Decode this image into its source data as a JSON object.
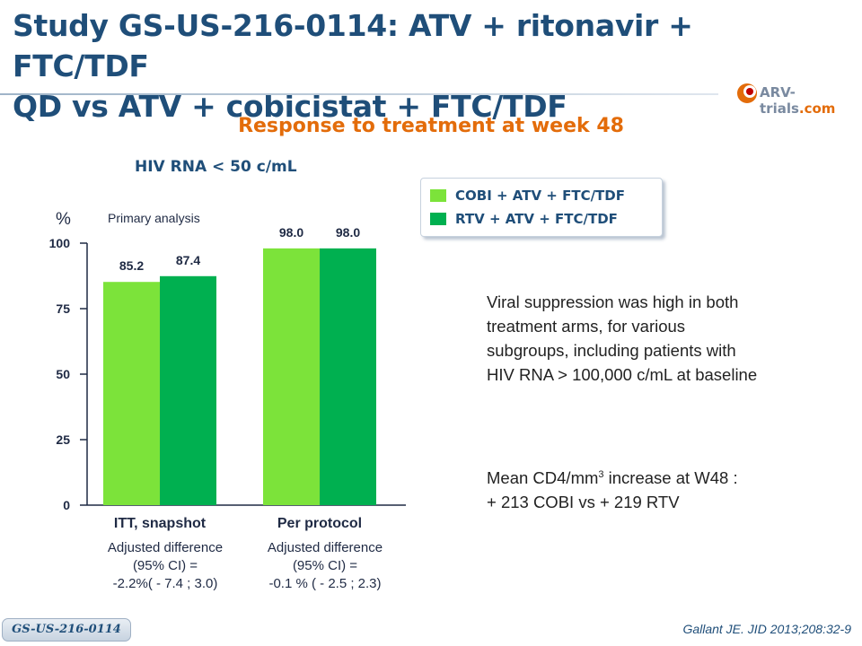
{
  "slide": {
    "title_line1": "Study GS-US-216-0114: ATV + ritonavir + FTC/TDF",
    "title_line2": "QD vs ATV + cobicistat + FTC/TDF",
    "subtitle": "Response to treatment at week 48",
    "metric_label": "HIV RNA < 50 c/mL",
    "logo": {
      "main": "ARV-trials",
      "accent": ".com"
    },
    "footer_tag": "GS-US-216-0114",
    "citation": "Gallant JE. JID 2013;208:32-9"
  },
  "notes": {
    "paragraph1": [
      "Viral suppression was high in both",
      "treatment arms, for various",
      "subgroups, including patients with",
      "HIV RNA > 100,000 c/mL at baseline"
    ],
    "cd4_line1_prefix": "Mean CD4/mm",
    "cd4_line1_sup": "3",
    "cd4_line1_suffix": " increase at W48 :",
    "cd4_line2": "+ 213 COBI vs + 219 RTV"
  },
  "chart_data": {
    "type": "bar",
    "ylabel": "%",
    "ylim": [
      0,
      100
    ],
    "yticks": [
      0,
      25,
      50,
      75,
      100
    ],
    "annotation": "Primary analysis",
    "categories": [
      "ITT, snapshot",
      "Per protocol"
    ],
    "series": [
      {
        "name": "COBI + ATV + FTC/TDF",
        "color": "#7ce33a",
        "values": [
          85.2,
          98.0
        ],
        "labels": [
          "85.2",
          "98.0"
        ]
      },
      {
        "name": "RTV + ATV + FTC/TDF",
        "color": "#00b050",
        "values": [
          87.4,
          98.0
        ],
        "labels": [
          "87.4",
          "98.0"
        ]
      }
    ],
    "category_notes": [
      [
        "Adjusted difference",
        "(95% CI) =",
        "-2.2%( - 7.4 ; 3.0)"
      ],
      [
        "Adjusted difference",
        "(95% CI) =",
        "-0.1 % ( - 2.5 ; 2.3)"
      ]
    ],
    "grid": false,
    "legend_position": "top-right"
  }
}
